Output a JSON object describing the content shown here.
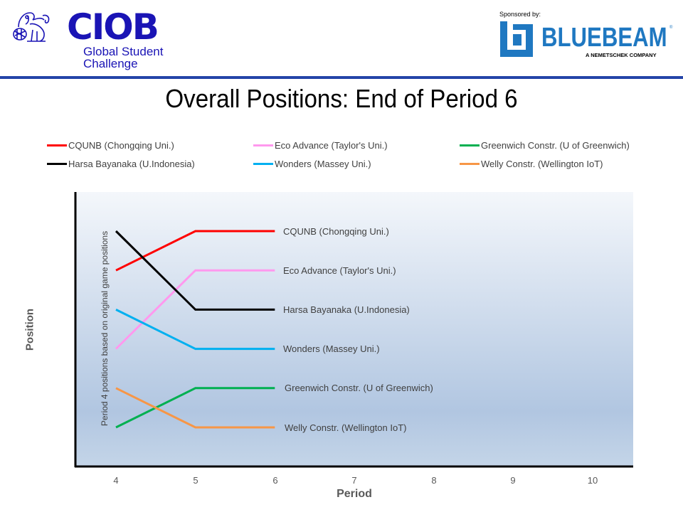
{
  "header": {
    "org_logo": {
      "wordmark": "CIOB",
      "subtitle_line1": "Global Student",
      "subtitle_line2": "Challenge",
      "color": "#1a14b5"
    },
    "sponsor": {
      "label": "Sponsored by:",
      "name": "BLUEBEAM",
      "registered": "®",
      "tagline": "A NEMETSCHEK COMPANY",
      "color": "#1f78c1"
    },
    "rule_color": "#2444a8"
  },
  "chart_data": {
    "type": "line",
    "title": "Overall Positions: End of Period 6",
    "xlabel": "Period",
    "ylabel": "Position",
    "annotation": "Period 4 positions based on original game positions",
    "x": [
      4,
      5,
      6,
      7,
      8,
      9,
      10
    ],
    "xlim": [
      4,
      10
    ],
    "ylim": [
      1,
      6
    ],
    "y_inverted": true,
    "grid": false,
    "legend_position": "top",
    "series": [
      {
        "name": "CQUNB (Chongqing Uni.)",
        "color": "#ff0000",
        "x": [
          4,
          5,
          6
        ],
        "values": [
          2,
          1,
          1
        ]
      },
      {
        "name": "Eco Advance (Taylor's Uni.)",
        "color": "#ff99ee",
        "x": [
          4,
          5,
          6
        ],
        "values": [
          4,
          2,
          2
        ]
      },
      {
        "name": "Greenwich Constr. (U of Greenwich)",
        "color": "#00b050",
        "x": [
          4,
          5,
          6
        ],
        "values": [
          6,
          5,
          5
        ]
      },
      {
        "name": "Harsa Bayanaka (U.Indonesia)",
        "color": "#000000",
        "x": [
          4,
          5,
          6
        ],
        "values": [
          1,
          3,
          3
        ]
      },
      {
        "name": "Wonders (Massey Uni.)",
        "color": "#00b0f0",
        "x": [
          4,
          5,
          6
        ],
        "values": [
          3,
          4,
          4
        ]
      },
      {
        "name": "Welly Constr. (Wellington IoT)",
        "color": "#f79646",
        "x": [
          4,
          5,
          6
        ],
        "values": [
          5,
          6,
          6
        ]
      }
    ],
    "end_labels": [
      "CQUNB (Chongqing Uni.)",
      "Eco Advance (Taylor's Uni.)",
      "Harsa Bayanaka (U.Indonesia)",
      "Wonders  (Massey Uni.)",
      "Greenwich  Constr. (U of Greenwich)",
      "Welly Constr. (Wellington IoT)"
    ],
    "plot_background": {
      "top": "#f4f7fb",
      "middle": "#b1c6e1",
      "bottom": "#c4d5e8"
    }
  }
}
